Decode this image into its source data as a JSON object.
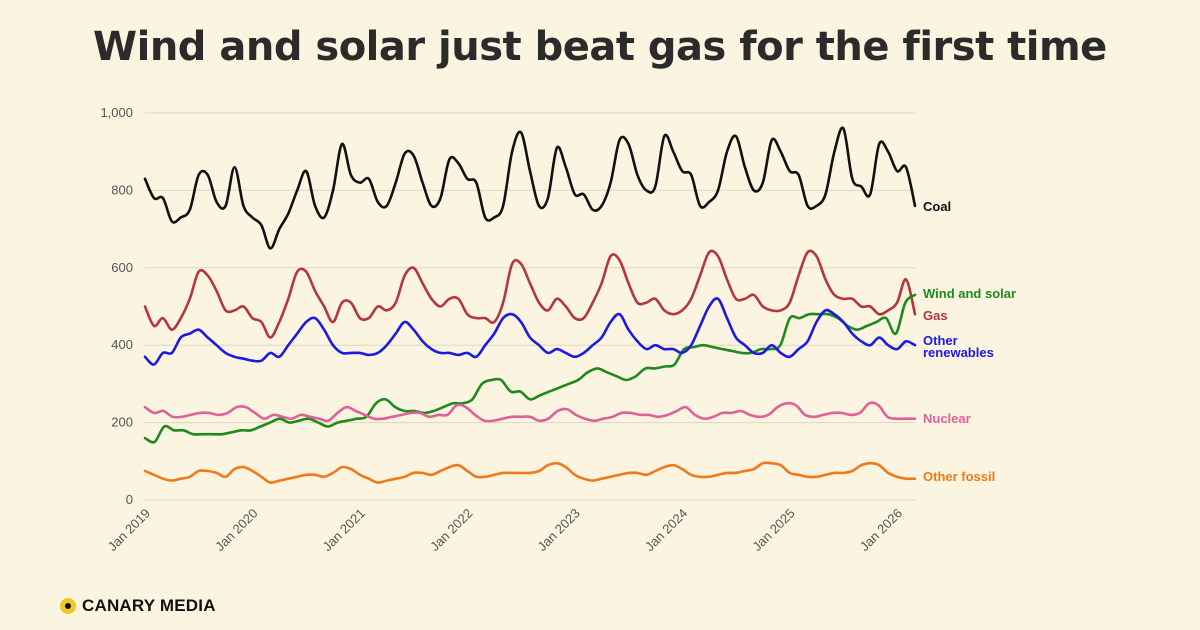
{
  "header": {
    "title": "Wind and solar just beat gas for the first time"
  },
  "brand": {
    "name": "CANARY MEDIA",
    "icon": "canary-logo-icon",
    "accent": "#f3c623"
  },
  "chart_data": {
    "type": "line",
    "title": "Wind and solar just beat gas for the first time",
    "xlabel": "",
    "ylabel": "",
    "x_start": "2019-01",
    "x_end": "2026-03",
    "ylim": [
      0,
      1000
    ],
    "yticks": [
      0,
      200,
      400,
      600,
      800,
      1000
    ],
    "ytick_labels": [
      "0",
      "200",
      "400",
      "600",
      "800",
      "1,000"
    ],
    "xtick_labels": [
      "Jan 2019",
      "Jan 2020",
      "Jan 2021",
      "Jan 2022",
      "Jan 2023",
      "Jan 2024",
      "Jan 2025",
      "Jan 2026"
    ],
    "grid": "horizontal",
    "legend": "inline-right",
    "series": [
      {
        "name": "Coal",
        "color": "#111111",
        "values": [
          830,
          780,
          780,
          720,
          730,
          750,
          840,
          840,
          770,
          760,
          860,
          760,
          730,
          710,
          650,
          700,
          740,
          800,
          850,
          760,
          730,
          800,
          920,
          840,
          820,
          830,
          770,
          760,
          820,
          895,
          890,
          820,
          760,
          780,
          880,
          870,
          830,
          820,
          730,
          730,
          760,
          900,
          950,
          850,
          760,
          780,
          910,
          860,
          790,
          790,
          750,
          760,
          820,
          930,
          920,
          840,
          800,
          810,
          940,
          900,
          850,
          840,
          760,
          770,
          800,
          900,
          940,
          860,
          800,
          820,
          930,
          900,
          850,
          840,
          760,
          760,
          790,
          900,
          960,
          830,
          810,
          790,
          920,
          900,
          850,
          860,
          760
        ]
      },
      {
        "name": "Gas",
        "color": "#b3373d",
        "values": [
          500,
          450,
          470,
          440,
          470,
          520,
          590,
          580,
          540,
          490,
          490,
          500,
          470,
          460,
          420,
          460,
          520,
          590,
          590,
          540,
          500,
          460,
          510,
          510,
          470,
          470,
          500,
          490,
          510,
          580,
          600,
          560,
          520,
          500,
          520,
          520,
          480,
          470,
          470,
          460,
          510,
          610,
          610,
          560,
          510,
          490,
          520,
          500,
          470,
          470,
          510,
          560,
          630,
          620,
          560,
          510,
          510,
          520,
          490,
          480,
          490,
          520,
          580,
          640,
          630,
          570,
          520,
          520,
          530,
          500,
          490,
          490,
          510,
          580,
          640,
          630,
          570,
          530,
          520,
          520,
          500,
          500,
          480,
          490,
          510,
          570,
          480
        ]
      },
      {
        "name": "Wind and solar",
        "color": "#1e8a1e",
        "values": [
          160,
          150,
          190,
          180,
          180,
          170,
          170,
          170,
          170,
          175,
          180,
          180,
          190,
          200,
          210,
          200,
          205,
          210,
          200,
          190,
          200,
          205,
          210,
          215,
          250,
          260,
          240,
          230,
          230,
          225,
          230,
          240,
          250,
          250,
          260,
          300,
          310,
          310,
          280,
          280,
          260,
          270,
          280,
          290,
          300,
          310,
          330,
          340,
          330,
          320,
          310,
          320,
          340,
          340,
          345,
          350,
          390,
          395,
          400,
          395,
          390,
          385,
          380,
          380,
          390,
          390,
          400,
          470,
          470,
          480,
          480,
          480,
          470,
          450,
          440,
          450,
          460,
          470,
          430,
          510,
          530
        ]
      },
      {
        "name": "Other renewables",
        "color": "#1a1ae0",
        "values": [
          370,
          350,
          380,
          380,
          420,
          430,
          440,
          420,
          400,
          380,
          370,
          365,
          360,
          360,
          380,
          370,
          400,
          430,
          460,
          470,
          440,
          400,
          380,
          380,
          380,
          375,
          380,
          400,
          430,
          460,
          440,
          410,
          390,
          380,
          380,
          375,
          380,
          370,
          400,
          430,
          470,
          480,
          460,
          420,
          400,
          380,
          390,
          380,
          370,
          380,
          400,
          420,
          460,
          480,
          440,
          410,
          390,
          400,
          390,
          390,
          380,
          400,
          450,
          500,
          520,
          470,
          420,
          400,
          380,
          380,
          400,
          380,
          370,
          390,
          410,
          460,
          490,
          480,
          460,
          430,
          410,
          400,
          420,
          400,
          390,
          410,
          400
        ]
      },
      {
        "name": "Nuclear",
        "color": "#e0609a",
        "values": [
          240,
          225,
          230,
          215,
          215,
          220,
          225,
          225,
          220,
          225,
          240,
          240,
          225,
          210,
          220,
          215,
          210,
          220,
          215,
          210,
          205,
          225,
          240,
          230,
          220,
          210,
          210,
          215,
          220,
          225,
          225,
          215,
          220,
          220,
          245,
          240,
          220,
          205,
          205,
          210,
          215,
          215,
          215,
          205,
          210,
          230,
          235,
          220,
          210,
          205,
          210,
          215,
          225,
          225,
          220,
          220,
          215,
          220,
          230,
          240,
          220,
          210,
          215,
          225,
          225,
          230,
          220,
          215,
          220,
          240,
          250,
          245,
          220,
          215,
          220,
          225,
          225,
          220,
          225,
          250,
          245,
          215,
          210,
          210,
          210
        ]
      },
      {
        "name": "Other fossil",
        "color": "#f07a1a",
        "values": [
          75,
          65,
          55,
          50,
          55,
          60,
          75,
          75,
          70,
          60,
          80,
          85,
          75,
          60,
          45,
          50,
          55,
          60,
          65,
          65,
          60,
          70,
          85,
          80,
          65,
          55,
          45,
          50,
          55,
          60,
          70,
          70,
          65,
          75,
          85,
          90,
          75,
          60,
          60,
          65,
          70,
          70,
          70,
          70,
          75,
          90,
          95,
          85,
          65,
          55,
          50,
          55,
          60,
          65,
          70,
          70,
          65,
          75,
          85,
          90,
          80,
          65,
          60,
          60,
          65,
          70,
          70,
          75,
          80,
          95,
          95,
          90,
          70,
          65,
          60,
          60,
          65,
          70,
          70,
          75,
          90,
          95,
          90,
          70,
          60,
          55,
          55
        ]
      }
    ]
  }
}
